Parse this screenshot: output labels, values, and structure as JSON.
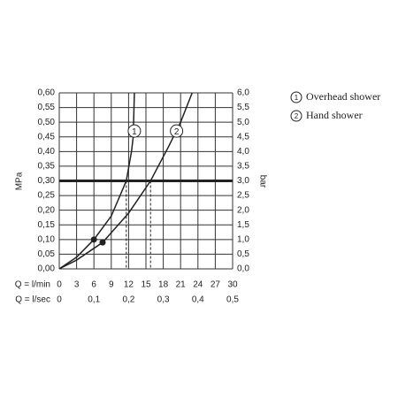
{
  "chart_data": {
    "type": "line",
    "x_label": "Q = l/min",
    "x2_label": "Q = l/sec",
    "y_label": "MPa",
    "y2_label": "bar",
    "xlim": [
      0,
      30
    ],
    "xticks": [
      0,
      3,
      6,
      9,
      12,
      15,
      18,
      21,
      24,
      27,
      30
    ],
    "x2lim": [
      0,
      0.5
    ],
    "x2ticks": [
      0,
      {
        "value": 0.1,
        "label": "0,1"
      },
      {
        "value": 0.2,
        "label": "0,2"
      },
      {
        "value": 0.3,
        "label": "0,3"
      },
      {
        "value": 0.4,
        "label": "0,4"
      },
      {
        "value": 0.5,
        "label": "0,5"
      }
    ],
    "ylim": [
      0,
      0.6
    ],
    "yticks": [
      {
        "value": 0,
        "label": "0,00"
      },
      {
        "value": 0.05,
        "label": "0,05"
      },
      {
        "value": 0.1,
        "label": "0,10"
      },
      {
        "value": 0.15,
        "label": "0,15"
      },
      {
        "value": 0.2,
        "label": "0,20"
      },
      {
        "value": 0.25,
        "label": "0,25"
      },
      {
        "value": 0.3,
        "label": "0,30"
      },
      {
        "value": 0.35,
        "label": "0,35"
      },
      {
        "value": 0.4,
        "label": "0,40"
      },
      {
        "value": 0.45,
        "label": "0,45"
      },
      {
        "value": 0.5,
        "label": "0,50"
      },
      {
        "value": 0.55,
        "label": "0,55"
      },
      {
        "value": 0.6,
        "label": "0,60"
      }
    ],
    "y2lim": [
      0,
      6
    ],
    "y2ticks": [
      {
        "value": 0,
        "label": "0,0"
      },
      {
        "value": 0.5,
        "label": "0,5"
      },
      {
        "value": 1,
        "label": "1,0"
      },
      {
        "value": 1.5,
        "label": "1,5"
      },
      {
        "value": 2,
        "label": "2,0"
      },
      {
        "value": 2.5,
        "label": "2,5"
      },
      {
        "value": 3,
        "label": "3,0"
      },
      {
        "value": 3.5,
        "label": "3,5"
      },
      {
        "value": 4,
        "label": "4,0"
      },
      {
        "value": 4.5,
        "label": "4,5"
      },
      {
        "value": 5,
        "label": "5,0"
      },
      {
        "value": 5.5,
        "label": "5,5"
      },
      {
        "value": 6,
        "label": "6,0"
      }
    ],
    "grid": true,
    "reference_y": 0.3,
    "color": "#222",
    "series": [
      {
        "name": "Overhead shower",
        "marker_label": "1",
        "label_at": [
          13.0,
          0.47
        ],
        "x": [
          0,
          3,
          6,
          9,
          11.6,
          12.5,
          12.8,
          13.0
        ],
        "values": [
          0,
          0.04,
          0.1,
          0.18,
          0.3,
          0.4,
          0.45,
          0.6
        ],
        "point": [
          6,
          0.1
        ],
        "operating_x": 11.6
      },
      {
        "name": "Hand shower",
        "marker_label": "2",
        "label_at": [
          20.3,
          0.47
        ],
        "x": [
          0,
          3,
          7.5,
          12,
          15.8,
          19,
          21,
          23
        ],
        "values": [
          0,
          0.03,
          0.09,
          0.19,
          0.3,
          0.42,
          0.5,
          0.6
        ],
        "point": [
          7.5,
          0.09
        ],
        "operating_x": 15.8
      }
    ]
  }
}
